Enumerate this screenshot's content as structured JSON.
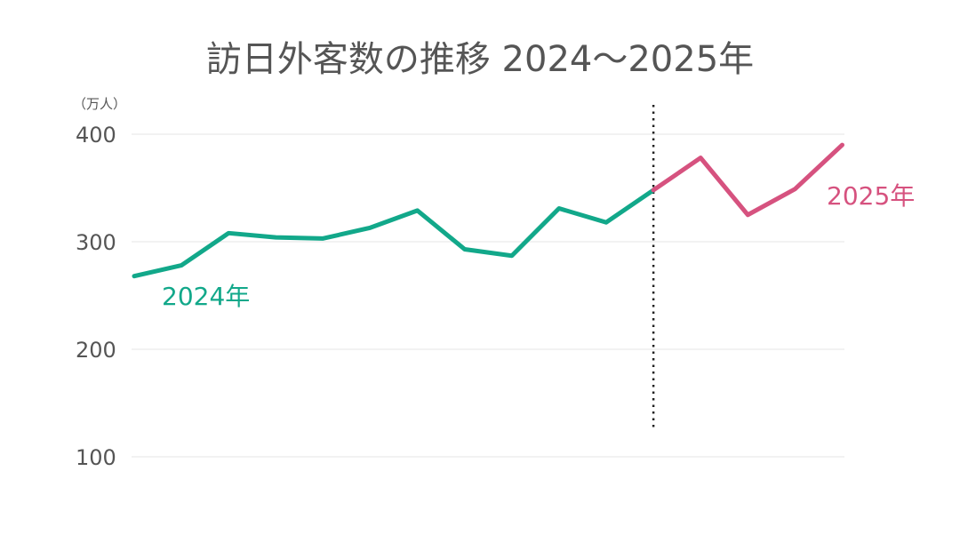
{
  "chart_data": {
    "type": "line",
    "title": "訪日外客数の推移 2024〜2025年",
    "unit_label": "（万人）",
    "ylim": [
      100,
      400
    ],
    "yticks": [
      100,
      200,
      300,
      400
    ],
    "ytick_labels": [
      "100",
      "200",
      "300",
      "400"
    ],
    "grid": true,
    "divider": "dotted vertical line between 2024 and 2025",
    "series": [
      {
        "name": "2024年",
        "color": "#12a88a",
        "x": [
          1,
          2,
          3,
          4,
          5,
          6,
          7,
          8,
          9,
          10,
          11,
          12
        ],
        "values": [
          268,
          278,
          308,
          304,
          303,
          313,
          329,
          293,
          287,
          331,
          318,
          348
        ]
      },
      {
        "name": "2025年",
        "color": "#d6527f",
        "x": [
          12,
          13,
          14,
          15,
          16
        ],
        "values": [
          348,
          378,
          325,
          349,
          390
        ]
      }
    ]
  }
}
